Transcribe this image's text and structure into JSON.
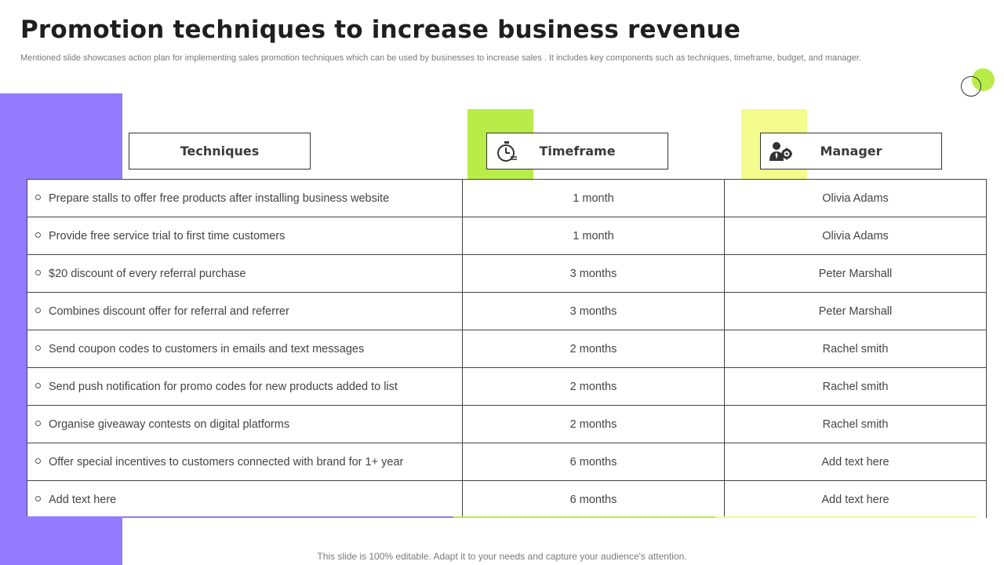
{
  "title": "Promotion techniques to increase business revenue",
  "subtitle": "Mentioned slide showcases action plan for implementing sales promotion techniques which can be used by businesses to increase sales . It includes key components such as techniques, timeframe, budget, and manager.",
  "colors": {
    "purple": "#937bff",
    "green": "#b9ec48",
    "yellow": "#f3fc8c",
    "border": "#444444"
  },
  "headers": {
    "techniques": {
      "label": "Techniques"
    },
    "timeframe": {
      "label": "Timeframe",
      "icon": "stopwatch-icon"
    },
    "manager": {
      "label": "Manager",
      "icon": "manager-gear-icon"
    }
  },
  "rows": [
    {
      "technique": "Prepare stalls to offer free products after installing business website",
      "timeframe": "1 month",
      "manager": "Olivia Adams"
    },
    {
      "technique": "Provide free service trial to first time customers",
      "timeframe": "1 month",
      "manager": "Olivia Adams"
    },
    {
      "technique": "$20 discount of every referral purchase",
      "timeframe": "3 months",
      "manager": "Peter Marshall"
    },
    {
      "technique": "Combines discount offer for referral and referrer",
      "timeframe": "3 months",
      "manager": "Peter Marshall"
    },
    {
      "technique": "Send coupon codes to customers in emails and text messages",
      "timeframe": "2 months",
      "manager": "Rachel smith"
    },
    {
      "technique": "Send push notification for promo codes for new products added to list",
      "timeframe": "2 months",
      "manager": "Rachel smith"
    },
    {
      "technique": "Organise giveaway contests on digital platforms",
      "timeframe": "2 months",
      "manager": "Rachel smith"
    },
    {
      "technique": "Offer special incentives to customers connected with brand for 1+ year",
      "timeframe": "6 months",
      "manager": "Add text here"
    },
    {
      "technique": "Add text here",
      "timeframe": "6 months",
      "manager": "Add text here"
    }
  ],
  "footer": "This slide is 100% editable. Adapt it to your needs and capture your audience's attention."
}
